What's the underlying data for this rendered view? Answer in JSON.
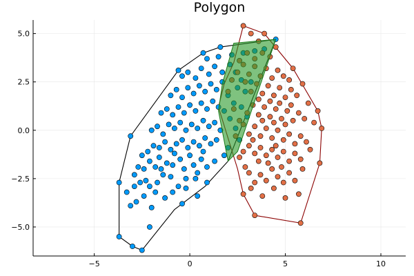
{
  "chart_data": {
    "type": "scatter",
    "title": "Polygon",
    "xlabel": "",
    "ylabel": "",
    "xlim": [
      -8.2,
      11.3
    ],
    "ylim": [
      -6.5,
      5.7
    ],
    "xticks": [
      -5,
      0,
      5,
      10
    ],
    "xtick_labels": [
      "−5",
      "0",
      "5",
      "10"
    ],
    "yticks": [
      -5,
      -2.5,
      0,
      2.5,
      5
    ],
    "ytick_labels": [
      "−5.0",
      "−2.5",
      "0.0",
      "2.5",
      "5.0"
    ],
    "grid": true,
    "legend": "none",
    "colors": {
      "blue_points": "#009AFA",
      "orange_points": "#E26F46",
      "blue_hull": "#000000",
      "orange_hull": "#8B0000",
      "intersection_fill": "#2A9A2A",
      "intersection_stroke": "#1A7A1A",
      "grid": "#e6e6e6",
      "axis": "#000000"
    },
    "series": [
      {
        "kind": "hull",
        "color": "#000000",
        "points": [
          [
            -2.5,
            -6.2
          ],
          [
            -3.0,
            -6.0
          ],
          [
            -3.7,
            -5.5
          ],
          [
            -3.7,
            -2.7
          ],
          [
            -3.1,
            -0.3
          ],
          [
            -0.6,
            3.1
          ],
          [
            0.7,
            4.0
          ],
          [
            1.6,
            4.3
          ],
          [
            4.5,
            4.7
          ],
          [
            2.0,
            -1.6
          ],
          [
            0.8,
            -2.9
          ],
          [
            -0.8,
            -4.1
          ]
        ]
      },
      {
        "kind": "hull",
        "color": "#8B0000",
        "points": [
          [
            2.8,
            5.4
          ],
          [
            3.9,
            5.0
          ],
          [
            5.4,
            3.2
          ],
          [
            6.7,
            1.0
          ],
          [
            6.9,
            0.1
          ],
          [
            6.8,
            -1.7
          ],
          [
            5.8,
            -4.8
          ],
          [
            3.4,
            -4.4
          ],
          [
            2.8,
            -3.3
          ],
          [
            2.5,
            -2.0
          ],
          [
            1.5,
            1.2
          ],
          [
            1.8,
            2.4
          ],
          [
            2.3,
            3.5
          ]
        ]
      },
      {
        "kind": "intersection",
        "color": "#2A9A2A",
        "points": [
          [
            2.3,
            4.5
          ],
          [
            4.5,
            4.7
          ],
          [
            2.5,
            -1.1
          ],
          [
            2.0,
            -1.6
          ],
          [
            1.5,
            1.0
          ],
          [
            1.7,
            2.4
          ]
        ]
      },
      {
        "name": "",
        "kind": "scatter",
        "color": "#009AFA",
        "points": [
          [
            -2.5,
            -6.2
          ],
          [
            -3.0,
            -6.0
          ],
          [
            -3.7,
            -5.5
          ],
          [
            -3.7,
            -2.7
          ],
          [
            -3.1,
            -0.3
          ],
          [
            -0.6,
            3.1
          ],
          [
            0.7,
            4.0
          ],
          [
            1.6,
            4.3
          ],
          [
            4.5,
            4.7
          ],
          [
            -2.1,
            -5.0
          ],
          [
            -3.1,
            -3.9
          ],
          [
            -2.8,
            -3.7
          ],
          [
            -2.4,
            -3.4
          ],
          [
            -2.0,
            -4.0
          ],
          [
            -1.8,
            -3.2
          ],
          [
            -3.3,
            -3.2
          ],
          [
            -2.9,
            -2.9
          ],
          [
            -2.6,
            -2.7
          ],
          [
            -2.3,
            -2.6
          ],
          [
            -2.1,
            -2.9
          ],
          [
            -1.7,
            -2.7
          ],
          [
            -1.4,
            -2.3
          ],
          [
            -0.9,
            -3.2
          ],
          [
            -0.6,
            -2.9
          ],
          [
            -0.2,
            -3.0
          ],
          [
            0.3,
            -2.5
          ],
          [
            0.9,
            -2.7
          ],
          [
            -2.7,
            -1.9
          ],
          [
            -2.4,
            -2.0
          ],
          [
            -2.1,
            -1.6
          ],
          [
            -1.8,
            -1.9
          ],
          [
            -1.5,
            -2.0
          ],
          [
            -1.2,
            -1.7
          ],
          [
            -0.9,
            -1.8
          ],
          [
            -0.5,
            -1.5
          ],
          [
            -0.3,
            -2.0
          ],
          [
            0.2,
            -1.8
          ],
          [
            0.6,
            -1.5
          ],
          [
            0.9,
            -1.9
          ],
          [
            1.3,
            -1.6
          ],
          [
            -2.2,
            -1.1
          ],
          [
            -1.9,
            -0.8
          ],
          [
            -1.6,
            -0.9
          ],
          [
            -1.3,
            -0.6
          ],
          [
            -1.0,
            -1.0
          ],
          [
            -0.7,
            -0.7
          ],
          [
            -0.4,
            -0.5
          ],
          [
            -0.1,
            -0.9
          ],
          [
            0.2,
            -0.6
          ],
          [
            0.5,
            -0.8
          ],
          [
            0.8,
            -0.4
          ],
          [
            1.1,
            -0.7
          ],
          [
            1.4,
            -0.5
          ],
          [
            -2.0,
            0.0
          ],
          [
            -1.7,
            0.2
          ],
          [
            -1.4,
            -0.2
          ],
          [
            -1.1,
            0.3
          ],
          [
            -0.8,
            0.1
          ],
          [
            -0.5,
            0.4
          ],
          [
            -0.2,
            0.0
          ],
          [
            0.1,
            0.3
          ],
          [
            0.4,
            0.1
          ],
          [
            0.7,
            0.5
          ],
          [
            1.0,
            0.2
          ],
          [
            1.3,
            0.4
          ],
          [
            1.6,
            0.0
          ],
          [
            -1.5,
            0.9
          ],
          [
            -1.2,
            1.1
          ],
          [
            -0.9,
            0.8
          ],
          [
            -0.6,
            1.2
          ],
          [
            -0.3,
            0.9
          ],
          [
            0.0,
            1.3
          ],
          [
            0.3,
            1.0
          ],
          [
            0.6,
            1.4
          ],
          [
            0.9,
            1.1
          ],
          [
            1.2,
            1.5
          ],
          [
            1.5,
            1.2
          ],
          [
            1.8,
            1.0
          ],
          [
            -1.0,
            1.8
          ],
          [
            -0.7,
            2.1
          ],
          [
            -0.4,
            1.7
          ],
          [
            -0.1,
            2.2
          ],
          [
            0.2,
            1.9
          ],
          [
            0.5,
            2.3
          ],
          [
            0.8,
            2.0
          ],
          [
            1.1,
            2.4
          ],
          [
            1.4,
            2.1
          ],
          [
            1.7,
            2.5
          ],
          [
            2.0,
            1.8
          ],
          [
            -0.4,
            2.8
          ],
          [
            -0.1,
            3.0
          ],
          [
            0.3,
            2.7
          ],
          [
            0.6,
            3.2
          ],
          [
            1.0,
            2.9
          ],
          [
            1.3,
            3.3
          ],
          [
            1.7,
            3.0
          ],
          [
            2.1,
            3.4
          ],
          [
            2.4,
            3.0
          ],
          [
            2.7,
            2.6
          ],
          [
            0.9,
            3.7
          ],
          [
            1.5,
            3.8
          ],
          [
            2.2,
            3.9
          ],
          [
            2.8,
            4.0
          ],
          [
            3.4,
            4.1
          ],
          [
            3.9,
            4.2
          ],
          [
            2.5,
            2.2
          ],
          [
            2.9,
            2.0
          ],
          [
            3.2,
            2.5
          ],
          [
            2.3,
            1.4
          ],
          [
            2.7,
            1.2
          ],
          [
            3.0,
            0.7
          ],
          [
            2.1,
            0.6
          ],
          [
            2.4,
            0.1
          ],
          [
            2.6,
            -0.5
          ],
          [
            2.0,
            -0.9
          ],
          [
            1.8,
            -1.3
          ],
          [
            -1.0,
            -2.4
          ],
          [
            -0.2,
            -2.5
          ],
          [
            0.4,
            -2.2
          ],
          [
            -1.6,
            -1.4
          ],
          [
            -0.8,
            -1.2
          ],
          [
            0.0,
            -1.3
          ],
          [
            0.7,
            -1.1
          ],
          [
            -2.5,
            -1.3
          ],
          [
            -2.9,
            -2.3
          ],
          [
            -1.3,
            -3.5
          ],
          [
            -0.4,
            -3.8
          ],
          [
            0.4,
            -3.4
          ]
        ]
      },
      {
        "name": "",
        "kind": "scatter",
        "color": "#E26F46",
        "points": [
          [
            2.8,
            5.4
          ],
          [
            3.9,
            5.0
          ],
          [
            5.4,
            3.2
          ],
          [
            6.7,
            1.0
          ],
          [
            6.9,
            0.1
          ],
          [
            6.8,
            -1.7
          ],
          [
            5.8,
            -4.8
          ],
          [
            3.4,
            -4.4
          ],
          [
            2.8,
            -3.3
          ],
          [
            5.7,
            -3.3
          ],
          [
            5.5,
            -2.6
          ],
          [
            5.2,
            -2.2
          ],
          [
            4.9,
            -2.7
          ],
          [
            4.6,
            -2.4
          ],
          [
            4.3,
            -2.0
          ],
          [
            4.0,
            -2.6
          ],
          [
            3.7,
            -2.3
          ],
          [
            3.4,
            -2.7
          ],
          [
            3.1,
            -2.2
          ],
          [
            2.9,
            -1.9
          ],
          [
            5.8,
            -1.5
          ],
          [
            5.5,
            -1.2
          ],
          [
            5.2,
            -1.6
          ],
          [
            4.9,
            -1.1
          ],
          [
            4.6,
            -1.4
          ],
          [
            4.3,
            -1.0
          ],
          [
            4.0,
            -1.3
          ],
          [
            3.7,
            -0.9
          ],
          [
            3.4,
            -1.2
          ],
          [
            3.1,
            -0.8
          ],
          [
            2.8,
            -1.1
          ],
          [
            6.1,
            -0.6
          ],
          [
            5.8,
            -0.3
          ],
          [
            5.5,
            -0.7
          ],
          [
            5.2,
            -0.2
          ],
          [
            4.9,
            -0.5
          ],
          [
            4.6,
            0.0
          ],
          [
            4.3,
            -0.4
          ],
          [
            4.0,
            0.1
          ],
          [
            3.7,
            -0.3
          ],
          [
            3.4,
            0.2
          ],
          [
            3.1,
            -0.2
          ],
          [
            2.8,
            0.3
          ],
          [
            6.0,
            0.6
          ],
          [
            5.7,
            0.9
          ],
          [
            5.4,
            0.5
          ],
          [
            5.1,
            1.0
          ],
          [
            4.8,
            0.6
          ],
          [
            4.5,
            1.1
          ],
          [
            4.2,
            0.7
          ],
          [
            3.9,
            1.2
          ],
          [
            3.6,
            0.8
          ],
          [
            3.3,
            1.3
          ],
          [
            3.0,
            0.9
          ],
          [
            5.6,
            1.8
          ],
          [
            5.3,
            2.1
          ],
          [
            5.0,
            1.7
          ],
          [
            4.7,
            2.2
          ],
          [
            4.4,
            1.8
          ],
          [
            4.1,
            2.3
          ],
          [
            3.8,
            1.9
          ],
          [
            3.5,
            2.4
          ],
          [
            3.2,
            2.0
          ],
          [
            2.9,
            2.5
          ],
          [
            4.9,
            2.8
          ],
          [
            4.6,
            3.1
          ],
          [
            4.3,
            2.7
          ],
          [
            4.0,
            3.2
          ],
          [
            3.7,
            2.8
          ],
          [
            3.4,
            3.3
          ],
          [
            3.1,
            2.9
          ],
          [
            2.8,
            3.4
          ],
          [
            4.2,
            3.8
          ],
          [
            3.8,
            4.0
          ],
          [
            3.4,
            3.7
          ],
          [
            3.0,
            4.0
          ],
          [
            2.6,
            3.6
          ],
          [
            2.5,
            3.0
          ],
          [
            2.2,
            2.6
          ],
          [
            2.0,
            2.0
          ],
          [
            2.3,
            1.1
          ],
          [
            2.6,
            0.5
          ],
          [
            2.4,
            -0.3
          ],
          [
            2.6,
            -1.4
          ],
          [
            3.2,
            -3.0
          ],
          [
            3.8,
            -3.4
          ],
          [
            4.4,
            -3.0
          ],
          [
            5.0,
            -3.5
          ],
          [
            5.9,
            -2.0
          ],
          [
            6.3,
            -1.0
          ],
          [
            6.5,
            0.4
          ],
          [
            6.2,
            1.4
          ],
          [
            5.9,
            2.4
          ],
          [
            5.2,
            2.6
          ],
          [
            4.5,
            4.3
          ],
          [
            3.6,
            4.6
          ],
          [
            3.2,
            5.0
          ],
          [
            4.1,
            -1.7
          ],
          [
            4.8,
            -1.9
          ],
          [
            3.6,
            -1.6
          ],
          [
            5.0,
            0.3
          ],
          [
            4.4,
            0.4
          ],
          [
            3.8,
            0.5
          ],
          [
            4.2,
            1.5
          ],
          [
            3.6,
            1.6
          ],
          [
            4.7,
            1.4
          ],
          [
            5.3,
            1.3
          ],
          [
            3.3,
            -0.5
          ],
          [
            4.5,
            -0.8
          ]
        ]
      }
    ]
  }
}
